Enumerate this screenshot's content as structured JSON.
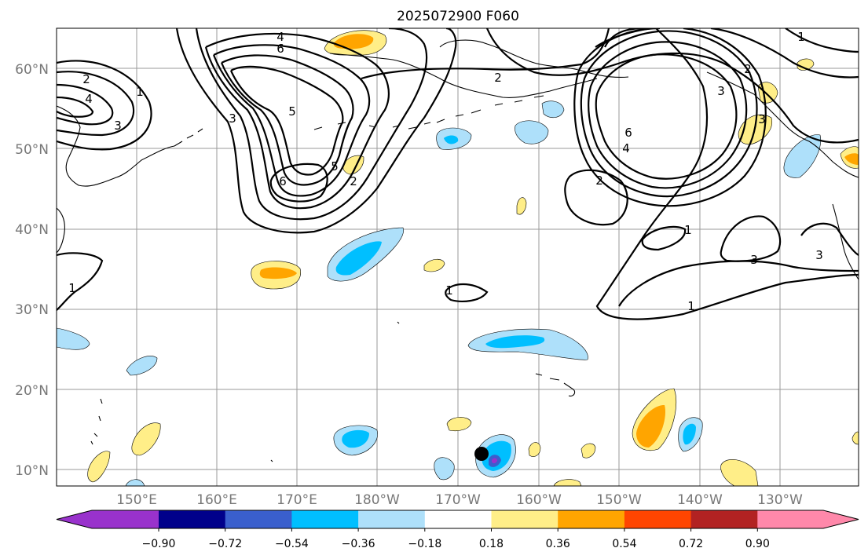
{
  "title": "2025072900 F060",
  "map": {
    "lat_ticks": [
      "60°N",
      "50°N",
      "40°N",
      "30°N",
      "20°N",
      "10°N"
    ],
    "lon_ticks": [
      "150°E",
      "160°E",
      "170°E",
      "180°W",
      "170°W",
      "160°W",
      "150°W",
      "140°W",
      "130°W"
    ],
    "contour_labels": [
      "4",
      "6",
      "2",
      "4",
      "3",
      "1",
      "5",
      "3",
      "5",
      "2",
      "6",
      "2",
      "6",
      "4",
      "3",
      "2",
      "3",
      "2",
      "1",
      "1",
      "1",
      "1",
      "3",
      "3"
    ],
    "marker": "black-dot",
    "shading_colors": {
      "pos_018_036": "#ffee88",
      "pos_036_054": "#ffa500",
      "neg_018_036": "#aee0fa",
      "neg_036_054": "#00bfff",
      "neg_054_072": "#3a5fcd"
    }
  },
  "colorbar": {
    "ticks": [
      "−0.90",
      "−0.72",
      "−0.54",
      "−0.36",
      "−0.18",
      "0.18",
      "0.36",
      "0.54",
      "0.72",
      "0.90"
    ],
    "colors": [
      "#9932cc",
      "#00008b",
      "#3a5fcd",
      "#00bfff",
      "#aee0fa",
      "#ffffff",
      "#ffee88",
      "#ffa500",
      "#ff4500",
      "#b22222",
      "#ff88aa"
    ]
  }
}
